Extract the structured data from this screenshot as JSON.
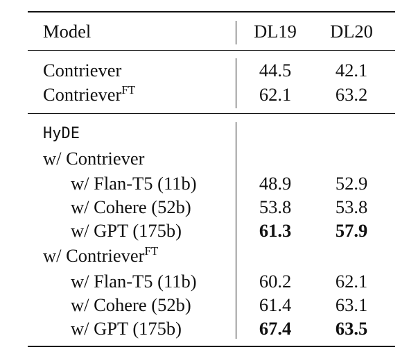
{
  "table": {
    "header": {
      "model": "Model",
      "dl19": "DL19",
      "dl20": "DL20"
    },
    "baselines": [
      {
        "name": "Contriever",
        "sup": "",
        "dl19": "44.5",
        "dl20": "42.1"
      },
      {
        "name": "Contriever",
        "sup": "FT",
        "dl19": "62.1",
        "dl20": "63.2"
      }
    ],
    "method": "HyDE",
    "groups": [
      {
        "label": "w/ Contriever",
        "sup": "",
        "rows": [
          {
            "name": "w/ Flan-T5 (11b)",
            "dl19": "48.9",
            "dl20": "52.9",
            "bold": false
          },
          {
            "name": "w/ Cohere (52b)",
            "dl19": "53.8",
            "dl20": "53.8",
            "bold": false
          },
          {
            "name": "w/ GPT (175b)",
            "dl19": "61.3",
            "dl20": "57.9",
            "bold": true
          }
        ]
      },
      {
        "label": "w/ Contriever",
        "sup": "FT",
        "rows": [
          {
            "name": "w/ Flan-T5 (11b)",
            "dl19": "60.2",
            "dl20": "62.1",
            "bold": false
          },
          {
            "name": "w/ Cohere (52b)",
            "dl19": "61.4",
            "dl20": "63.1",
            "bold": false
          },
          {
            "name": "w/ GPT (175b)",
            "dl19": "67.4",
            "dl20": "63.5",
            "bold": true
          }
        ]
      }
    ]
  }
}
